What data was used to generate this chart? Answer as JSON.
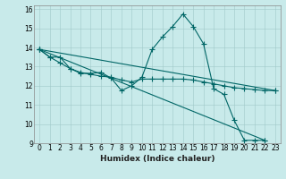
{
  "xlabel": "Humidex (Indice chaleur)",
  "background_color": "#c8eaea",
  "grid_color": "#a0c8c8",
  "line_color": "#006666",
  "xlim": [
    -0.5,
    23.5
  ],
  "ylim": [
    9,
    16.2
  ],
  "yticks": [
    9,
    10,
    11,
    12,
    13,
    14,
    15,
    16
  ],
  "xticks": [
    0,
    1,
    2,
    3,
    4,
    5,
    6,
    7,
    8,
    9,
    10,
    11,
    12,
    13,
    14,
    15,
    16,
    17,
    18,
    19,
    20,
    21,
    22,
    23
  ],
  "series": [
    {
      "x": [
        0,
        1,
        2,
        3,
        4,
        5,
        6,
        7,
        8,
        9,
        10,
        11,
        12,
        13,
        14,
        15,
        16,
        17,
        18,
        19,
        20,
        21,
        22
      ],
      "y": [
        13.9,
        13.5,
        13.5,
        12.9,
        12.65,
        12.65,
        12.7,
        12.4,
        11.75,
        12.0,
        12.45,
        13.9,
        14.55,
        15.1,
        15.75,
        15.1,
        14.2,
        11.85,
        11.55,
        10.2,
        9.15,
        9.15,
        9.15
      ]
    },
    {
      "x": [
        0,
        1,
        2,
        3,
        4,
        5,
        6,
        7,
        8,
        9,
        10,
        11,
        12,
        13,
        14,
        15,
        16,
        17,
        18,
        19,
        20,
        21,
        22,
        23
      ],
      "y": [
        13.9,
        13.5,
        13.2,
        12.9,
        12.7,
        12.6,
        12.5,
        12.45,
        12.3,
        12.2,
        12.35,
        12.35,
        12.35,
        12.35,
        12.35,
        12.3,
        12.2,
        12.1,
        12.0,
        11.9,
        11.85,
        11.8,
        11.75,
        11.75
      ]
    },
    {
      "x": [
        0,
        22
      ],
      "y": [
        13.9,
        9.15
      ]
    },
    {
      "x": [
        0,
        23
      ],
      "y": [
        13.9,
        11.75
      ]
    }
  ]
}
